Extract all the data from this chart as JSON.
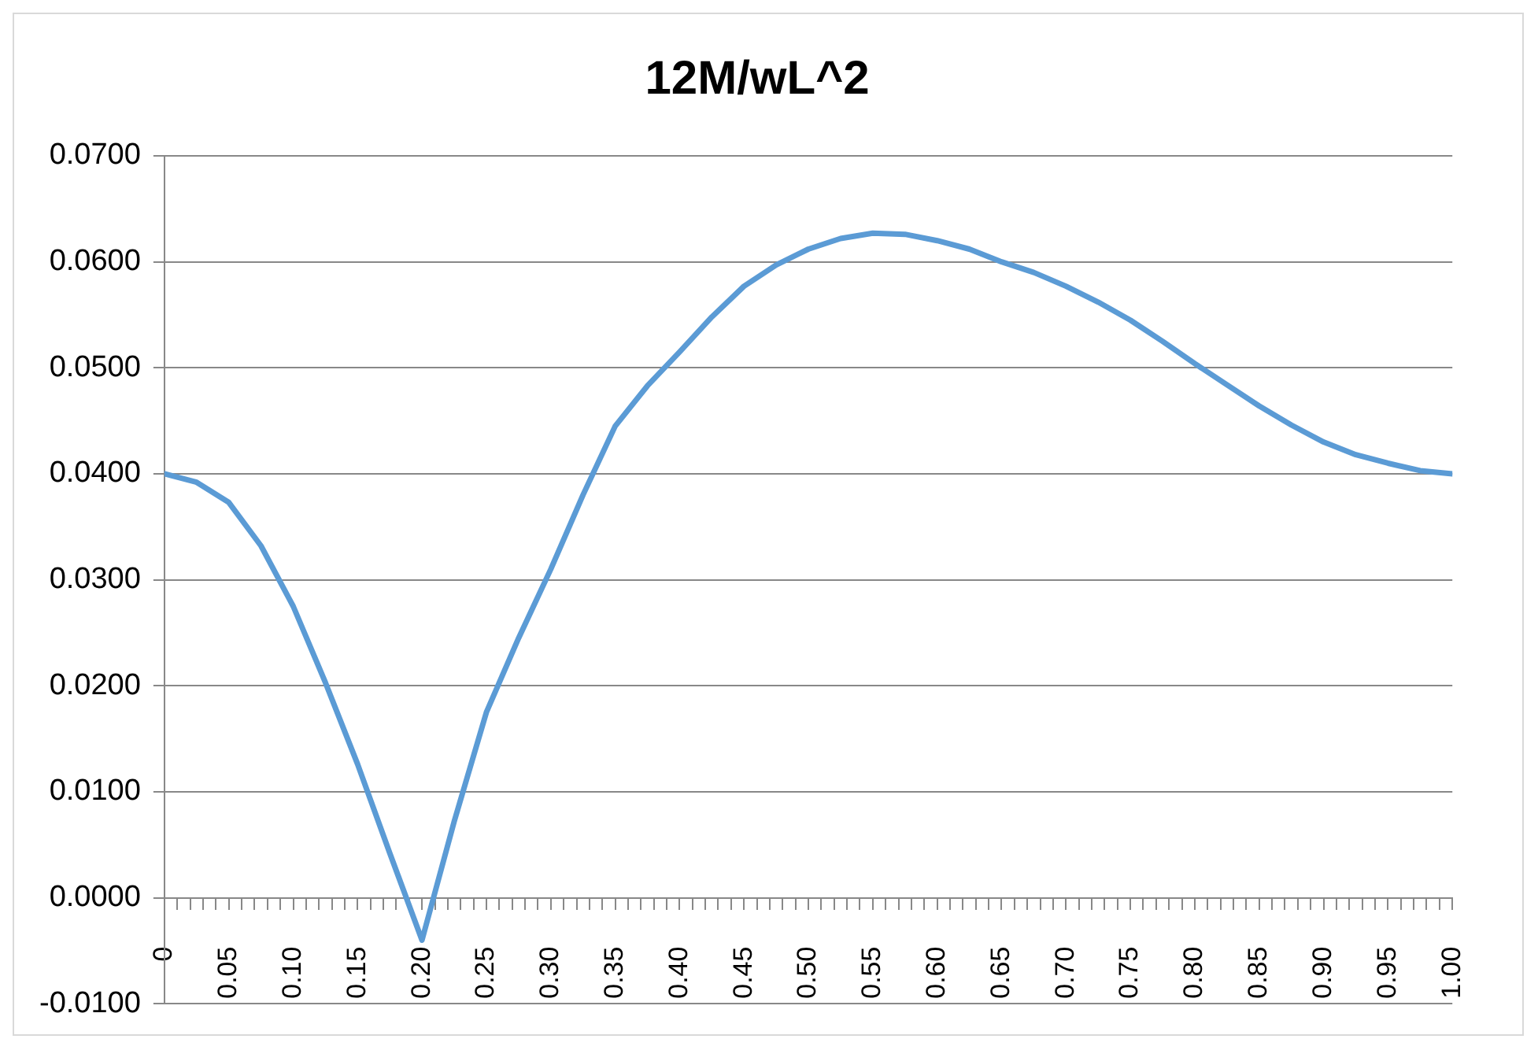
{
  "chart_data": {
    "type": "line",
    "title": "12M/wL^2",
    "x": [
      0,
      0.025,
      0.05,
      0.075,
      0.1,
      0.125,
      0.15,
      0.175,
      0.2,
      0.225,
      0.25,
      0.275,
      0.3,
      0.325,
      0.35,
      0.375,
      0.4,
      0.425,
      0.45,
      0.475,
      0.5,
      0.525,
      0.55,
      0.575,
      0.6,
      0.625,
      0.65,
      0.675,
      0.7,
      0.725,
      0.75,
      0.775,
      0.8,
      0.825,
      0.85,
      0.875,
      0.9,
      0.925,
      0.95,
      0.975,
      1
    ],
    "series": [
      {
        "color": "#5b9bd5",
        "values": [
          0.04,
          0.0392,
          0.0373,
          0.0332,
          0.0275,
          0.0203,
          0.0126,
          0.0042,
          -0.004,
          0.0072,
          0.0175,
          0.0245,
          0.031,
          0.038,
          0.0445,
          0.0483,
          0.0515,
          0.0548,
          0.0577,
          0.0597,
          0.0612,
          0.0622,
          0.0627,
          0.0626,
          0.062,
          0.0612,
          0.06,
          0.059,
          0.0577,
          0.0562,
          0.0545,
          0.0525,
          0.0504,
          0.0484,
          0.0464,
          0.0446,
          0.043,
          0.0418,
          0.041,
          0.0403,
          0.04
        ]
      }
    ],
    "xlim": [
      0,
      1
    ],
    "xticks": [
      {
        "value": 0,
        "label": "0"
      },
      {
        "value": 0.01,
        "label": null
      },
      {
        "value": 0.02,
        "label": null
      },
      {
        "value": 0.03,
        "label": null
      },
      {
        "value": 0.04,
        "label": null
      },
      {
        "value": 0.05,
        "label": "0.05"
      },
      {
        "value": 0.06,
        "label": null
      },
      {
        "value": 0.07,
        "label": null
      },
      {
        "value": 0.08,
        "label": null
      },
      {
        "value": 0.09,
        "label": null
      },
      {
        "value": 0.1,
        "label": "0.10"
      },
      {
        "value": 0.11,
        "label": null
      },
      {
        "value": 0.12,
        "label": null
      },
      {
        "value": 0.13,
        "label": null
      },
      {
        "value": 0.14,
        "label": null
      },
      {
        "value": 0.15,
        "label": "0.15"
      },
      {
        "value": 0.16,
        "label": null
      },
      {
        "value": 0.17,
        "label": null
      },
      {
        "value": 0.18,
        "label": null
      },
      {
        "value": 0.19,
        "label": null
      },
      {
        "value": 0.2,
        "label": "0.20"
      },
      {
        "value": 0.21,
        "label": null
      },
      {
        "value": 0.22,
        "label": null
      },
      {
        "value": 0.23,
        "label": null
      },
      {
        "value": 0.24,
        "label": null
      },
      {
        "value": 0.25,
        "label": "0.25"
      },
      {
        "value": 0.26,
        "label": null
      },
      {
        "value": 0.27,
        "label": null
      },
      {
        "value": 0.28,
        "label": null
      },
      {
        "value": 0.29,
        "label": null
      },
      {
        "value": 0.3,
        "label": "0.30"
      },
      {
        "value": 0.31,
        "label": null
      },
      {
        "value": 0.32,
        "label": null
      },
      {
        "value": 0.33,
        "label": null
      },
      {
        "value": 0.34,
        "label": null
      },
      {
        "value": 0.35,
        "label": "0.35"
      },
      {
        "value": 0.36,
        "label": null
      },
      {
        "value": 0.37,
        "label": null
      },
      {
        "value": 0.38,
        "label": null
      },
      {
        "value": 0.39,
        "label": null
      },
      {
        "value": 0.4,
        "label": "0.40"
      },
      {
        "value": 0.41,
        "label": null
      },
      {
        "value": 0.42,
        "label": null
      },
      {
        "value": 0.43,
        "label": null
      },
      {
        "value": 0.44,
        "label": null
      },
      {
        "value": 0.45,
        "label": "0.45"
      },
      {
        "value": 0.46,
        "label": null
      },
      {
        "value": 0.47,
        "label": null
      },
      {
        "value": 0.48,
        "label": null
      },
      {
        "value": 0.49,
        "label": null
      },
      {
        "value": 0.5,
        "label": "0.50"
      },
      {
        "value": 0.51,
        "label": null
      },
      {
        "value": 0.52,
        "label": null
      },
      {
        "value": 0.53,
        "label": null
      },
      {
        "value": 0.54,
        "label": null
      },
      {
        "value": 0.55,
        "label": "0.55"
      },
      {
        "value": 0.56,
        "label": null
      },
      {
        "value": 0.57,
        "label": null
      },
      {
        "value": 0.58,
        "label": null
      },
      {
        "value": 0.59,
        "label": null
      },
      {
        "value": 0.6,
        "label": "0.60"
      },
      {
        "value": 0.61,
        "label": null
      },
      {
        "value": 0.62,
        "label": null
      },
      {
        "value": 0.63,
        "label": null
      },
      {
        "value": 0.64,
        "label": null
      },
      {
        "value": 0.65,
        "label": "0.65"
      },
      {
        "value": 0.66,
        "label": null
      },
      {
        "value": 0.67,
        "label": null
      },
      {
        "value": 0.68,
        "label": null
      },
      {
        "value": 0.69,
        "label": null
      },
      {
        "value": 0.7,
        "label": "0.70"
      },
      {
        "value": 0.71,
        "label": null
      },
      {
        "value": 0.72,
        "label": null
      },
      {
        "value": 0.73,
        "label": null
      },
      {
        "value": 0.74,
        "label": null
      },
      {
        "value": 0.75,
        "label": "0.75"
      },
      {
        "value": 0.76,
        "label": null
      },
      {
        "value": 0.77,
        "label": null
      },
      {
        "value": 0.78,
        "label": null
      },
      {
        "value": 0.79,
        "label": null
      },
      {
        "value": 0.8,
        "label": "0.80"
      },
      {
        "value": 0.81,
        "label": null
      },
      {
        "value": 0.82,
        "label": null
      },
      {
        "value": 0.83,
        "label": null
      },
      {
        "value": 0.84,
        "label": null
      },
      {
        "value": 0.85,
        "label": "0.85"
      },
      {
        "value": 0.86,
        "label": null
      },
      {
        "value": 0.87,
        "label": null
      },
      {
        "value": 0.88,
        "label": null
      },
      {
        "value": 0.89,
        "label": null
      },
      {
        "value": 0.9,
        "label": "0.90"
      },
      {
        "value": 0.91,
        "label": null
      },
      {
        "value": 0.92,
        "label": null
      },
      {
        "value": 0.93,
        "label": null
      },
      {
        "value": 0.94,
        "label": null
      },
      {
        "value": 0.95,
        "label": "0.95"
      },
      {
        "value": 0.96,
        "label": null
      },
      {
        "value": 0.97,
        "label": null
      },
      {
        "value": 0.98,
        "label": null
      },
      {
        "value": 0.99,
        "label": null
      },
      {
        "value": 1,
        "label": "1.00"
      }
    ],
    "ylim": [
      -0.01,
      0.07
    ],
    "yticks": [
      {
        "value": -0.01,
        "label": "-0.0100"
      },
      {
        "value": 0,
        "label": "0.0000"
      },
      {
        "value": 0.01,
        "label": "0.0100"
      },
      {
        "value": 0.02,
        "label": "0.0200"
      },
      {
        "value": 0.03,
        "label": "0.0300"
      },
      {
        "value": 0.04,
        "label": "0.0400"
      },
      {
        "value": 0.05,
        "label": "0.0500"
      },
      {
        "value": 0.06,
        "label": "0.0600"
      },
      {
        "value": 0.07,
        "label": "0.0700"
      }
    ],
    "grid": "y",
    "legend": false,
    "marker": "none",
    "line_style": "solid"
  }
}
